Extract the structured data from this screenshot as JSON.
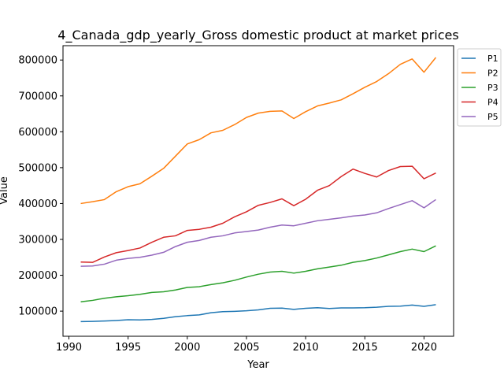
{
  "chart_data": {
    "type": "line",
    "title": "4_Canada_gdp_yearly_Gross domestic product at market prices",
    "xlabel": "Year",
    "ylabel": "Value",
    "xlim": [
      1989.5,
      2022.5
    ],
    "ylim": [
      30000,
      840000
    ],
    "xticks": [
      1990,
      1995,
      2000,
      2005,
      2010,
      2015,
      2020
    ],
    "yticks": [
      100000,
      200000,
      300000,
      400000,
      500000,
      600000,
      700000,
      800000
    ],
    "grid": false,
    "legend_position": "outside-top-right",
    "x": [
      1991,
      1992,
      1993,
      1994,
      1995,
      1996,
      1997,
      1998,
      1999,
      2000,
      2001,
      2002,
      2003,
      2004,
      2005,
      2006,
      2007,
      2008,
      2009,
      2010,
      2011,
      2012,
      2013,
      2014,
      2015,
      2016,
      2017,
      2018,
      2019,
      2020,
      2021
    ],
    "series": [
      {
        "name": "P1",
        "color": "#1f77b4",
        "values": [
          71000,
          71500,
          72500,
          74000,
          76000,
          75500,
          77000,
          80000,
          84500,
          87500,
          89500,
          95500,
          98500,
          99500,
          101000,
          103500,
          108000,
          108500,
          105000,
          108000,
          109500,
          107500,
          109000,
          109000,
          109500,
          111000,
          113500,
          114000,
          117000,
          113500,
          118000
        ]
      },
      {
        "name": "P2",
        "color": "#ff7f0e",
        "values": [
          400000,
          405000,
          411000,
          433000,
          447000,
          455000,
          476000,
          498000,
          532000,
          566000,
          578000,
          597000,
          604000,
          620000,
          640000,
          652000,
          657000,
          658000,
          637000,
          656000,
          672000,
          680000,
          689000,
          706000,
          724000,
          740000,
          762000,
          788000,
          803000,
          766000,
          807000
        ]
      },
      {
        "name": "P3",
        "color": "#2ca02c",
        "values": [
          126000,
          130000,
          136000,
          140000,
          143000,
          147000,
          152000,
          154000,
          159000,
          166000,
          168000,
          174000,
          179000,
          186000,
          195000,
          203000,
          209000,
          211000,
          206000,
          211000,
          218000,
          223000,
          228000,
          236000,
          241000,
          248000,
          257000,
          266000,
          273000,
          266000,
          282000
        ]
      },
      {
        "name": "P4",
        "color": "#d62728",
        "values": [
          237000,
          236000,
          251000,
          263000,
          269000,
          276000,
          292000,
          306000,
          310000,
          325000,
          328000,
          334000,
          345000,
          363000,
          377000,
          395000,
          403000,
          413000,
          394000,
          412000,
          437000,
          450000,
          475000,
          496000,
          484000,
          474000,
          492000,
          503000,
          504000,
          469000,
          485000
        ]
      },
      {
        "name": "P5",
        "color": "#9467bd",
        "values": [
          225000,
          226000,
          231000,
          242000,
          247000,
          250000,
          256000,
          264000,
          280000,
          292000,
          297000,
          306000,
          310000,
          318000,
          322000,
          326000,
          334000,
          340000,
          338000,
          345000,
          352000,
          356000,
          360000,
          365000,
          368000,
          374000,
          386000,
          397000,
          408000,
          388000,
          411000
        ]
      }
    ]
  }
}
